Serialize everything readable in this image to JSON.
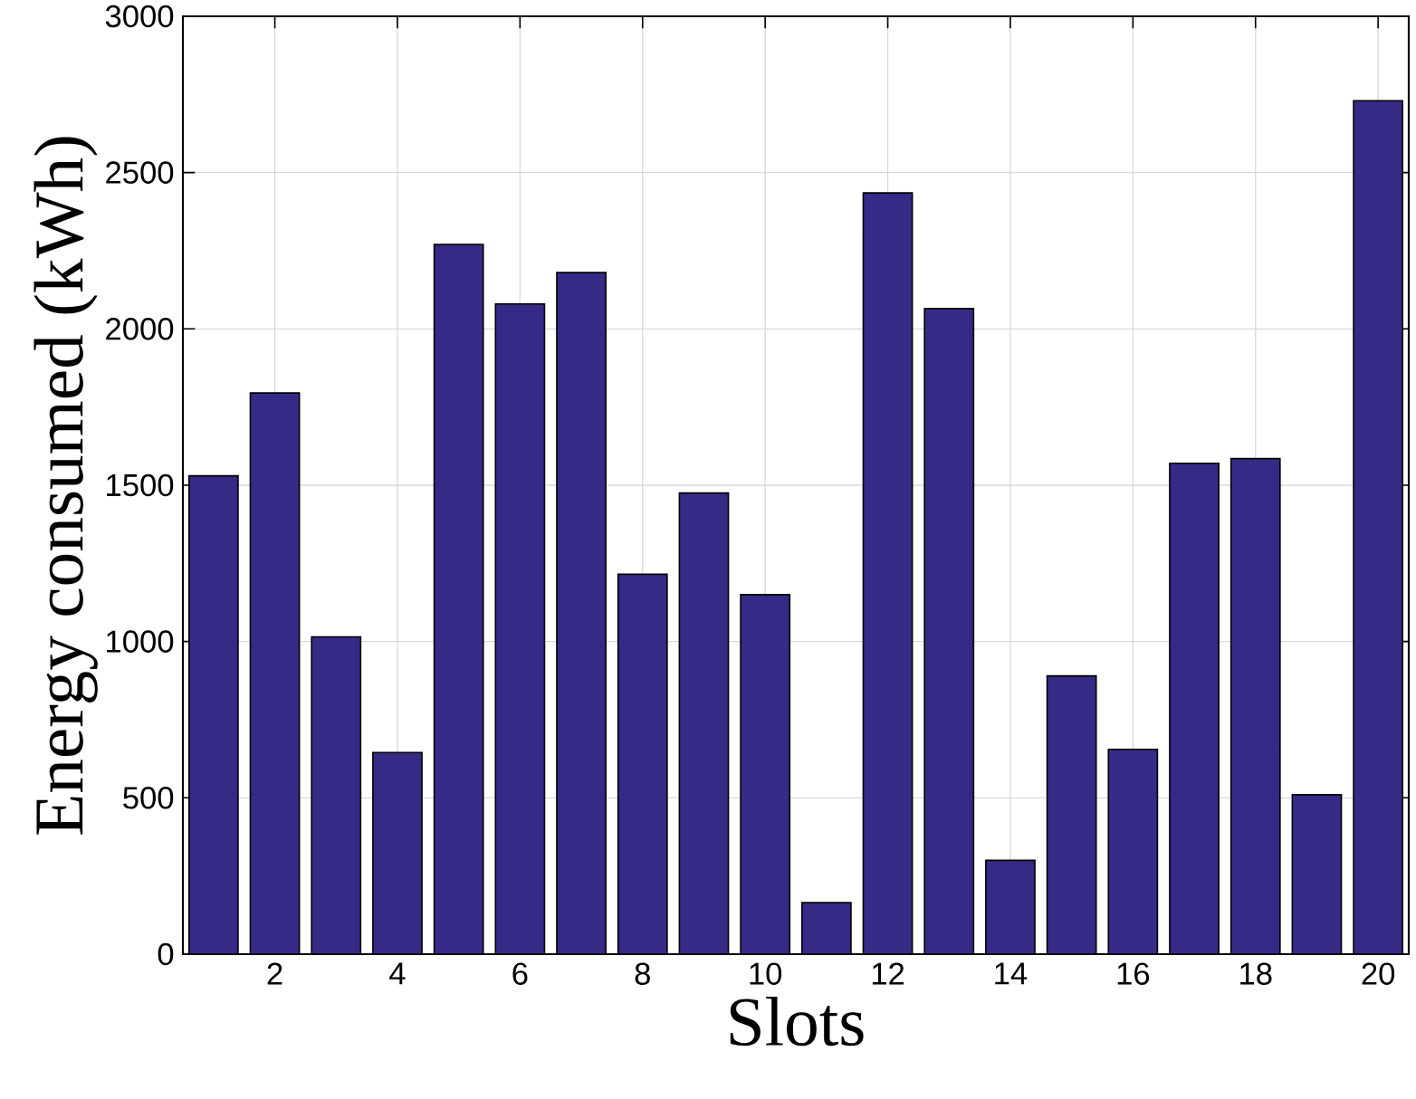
{
  "chart_data": {
    "type": "bar",
    "xlabel": "Slots",
    "ylabel": "Energy consumed (kWh)",
    "x": [
      1,
      2,
      3,
      4,
      5,
      6,
      7,
      8,
      9,
      10,
      11,
      12,
      13,
      14,
      15,
      16,
      17,
      18,
      19,
      20
    ],
    "values": [
      1530,
      1795,
      1015,
      645,
      2270,
      2080,
      2180,
      1215,
      1475,
      1150,
      165,
      2435,
      2065,
      300,
      890,
      655,
      1570,
      1585,
      510,
      2730
    ],
    "color": "#352a86",
    "xlim": [
      0.5,
      20.5
    ],
    "xticks": [
      2,
      4,
      6,
      8,
      10,
      12,
      14,
      16,
      18,
      20
    ],
    "ylim": [
      0,
      3000
    ],
    "yticks": [
      0,
      500,
      1000,
      1500,
      2000,
      2500,
      3000
    ],
    "grid": true
  }
}
